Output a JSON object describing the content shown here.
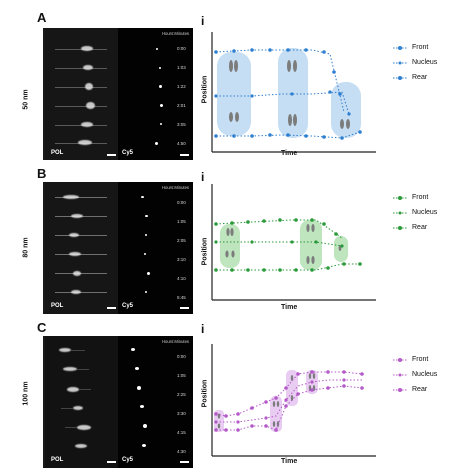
{
  "panels": [
    {
      "letter": "A",
      "row_label": "50 nm",
      "header": "Hours:Minutes",
      "times": [
        "0:00",
        "1:03",
        "1:22",
        "2:01",
        "3:05",
        "4:50"
      ],
      "pol_label": "POL",
      "cy5_label": "Cy5",
      "sub_label": "i",
      "y_label": "Position",
      "x_label": "Time",
      "legend": [
        "Front",
        "Nucleus",
        "Rear"
      ],
      "color": "#2f7fd0",
      "fill_color": "#bcd8f2"
    },
    {
      "letter": "B",
      "row_label": "80 nm",
      "header": "Hours:Minutes",
      "times": [
        "0:00",
        "1:05",
        "2:05",
        "3:10",
        "4:10",
        "5:45"
      ],
      "pol_label": "POL",
      "cy5_label": "Cy5",
      "sub_label": "i",
      "y_label": "Position",
      "x_label": "Time",
      "legend": [
        "Front",
        "Nucleus",
        "Rear"
      ],
      "color": "#2a9a3a",
      "fill_color": "#b8e2b8"
    },
    {
      "letter": "C",
      "row_label": "100 nm",
      "header": "Hours:Minutes",
      "times": [
        "0:00",
        "1:05",
        "2:25",
        "3:30",
        "4:15",
        "4:30"
      ],
      "pol_label": "POL",
      "cy5_label": "Cy5",
      "sub_label": "i",
      "y_label": "Position",
      "x_label": "Time",
      "legend": [
        "Front",
        "Nucleus",
        "Rear"
      ],
      "color": "#b35ac8",
      "fill_color": "#e6c6ef"
    }
  ],
  "icons": {
    "marker": "filled-circle",
    "cell_shape": "oval-capsule"
  }
}
